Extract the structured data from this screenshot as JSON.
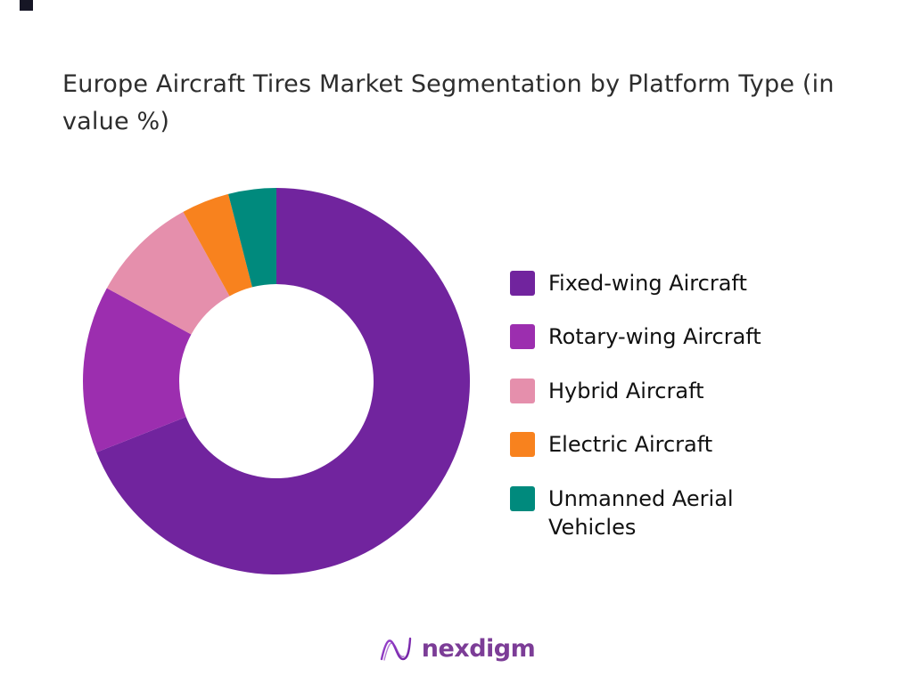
{
  "page": {
    "title": "Europe Aircraft Tires Market Segmentation by Platform Type (in value %)"
  },
  "chart_data": {
    "type": "pie",
    "variant": "donut",
    "title": "Europe Aircraft Tires Market Segmentation by Platform Type (in value %)",
    "categories": [
      "Fixed-wing Aircraft",
      "Rotary-wing Aircraft",
      "Hybrid Aircraft",
      "Electric Aircraft",
      "Unmanned Aerial Vehicles"
    ],
    "values": [
      69,
      14,
      9,
      4,
      4
    ],
    "units": "percent (value %)",
    "colors": [
      "#71249E",
      "#9C2EAF",
      "#E58FAC",
      "#F8821E",
      "#008A7D"
    ],
    "legend_position": "right",
    "start_angle_deg": -90,
    "direction": "clockwise",
    "inner_radius_ratio": 0.5,
    "data_labels": false
  },
  "footer": {
    "brand": "nexdigm",
    "brand_color": "#7C3D97"
  }
}
